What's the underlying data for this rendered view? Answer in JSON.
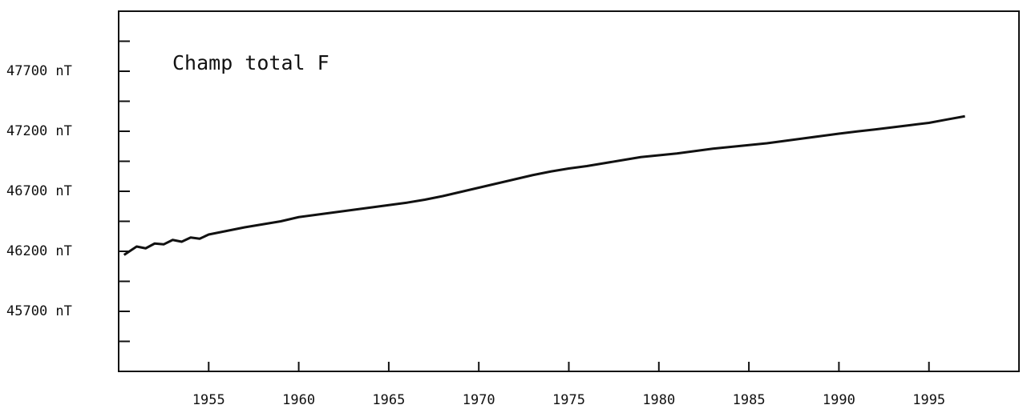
{
  "chart_data": {
    "type": "line",
    "title": "Champ total F",
    "x": [
      1950.3,
      1951,
      1951.5,
      1952,
      1952.5,
      1953,
      1953.5,
      1954,
      1954.5,
      1955,
      1956,
      1957,
      1958,
      1959,
      1960,
      1961,
      1962,
      1963,
      1964,
      1965,
      1966,
      1967,
      1968,
      1969,
      1970,
      1971,
      1972,
      1973,
      1974,
      1975,
      1976,
      1977,
      1978,
      1979,
      1980,
      1981,
      1982,
      1983,
      1984,
      1985,
      1986,
      1987,
      1988,
      1989,
      1990,
      1991,
      1992,
      1993,
      1994,
      1995,
      1996,
      1997
    ],
    "series": [
      {
        "color": "#111111",
        "values": [
          46170,
          46240,
          46225,
          46265,
          46258,
          46295,
          46280,
          46315,
          46305,
          46340,
          46370,
          46400,
          46425,
          46450,
          46485,
          46505,
          46525,
          46545,
          46565,
          46585,
          46605,
          46630,
          46660,
          46695,
          46730,
          46765,
          46800,
          46835,
          46865,
          46890,
          46910,
          46935,
          46960,
          46985,
          47000,
          47015,
          47035,
          47055,
          47070,
          47085,
          47100,
          47120,
          47140,
          47160,
          47180,
          47198,
          47215,
          47233,
          47252,
          47270,
          47298,
          47325
        ]
      }
    ],
    "xlim": [
      1950,
      2000
    ],
    "xticks": [
      1955,
      1960,
      1965,
      1970,
      1975,
      1980,
      1985,
      1990,
      1995
    ],
    "ylim": [
      45200,
      48200
    ],
    "yticks": [
      {
        "value": 45700,
        "label": "45700 nT"
      },
      {
        "value": 46200,
        "label": "46200 nT"
      },
      {
        "value": 46700,
        "label": "46700 nT"
      },
      {
        "value": 47200,
        "label": "47200 nT"
      },
      {
        "value": 47700,
        "label": "47700 nT"
      }
    ],
    "yminorticks": [
      45450,
      45950,
      46450,
      46950,
      47450,
      47950
    ],
    "grid": false
  }
}
